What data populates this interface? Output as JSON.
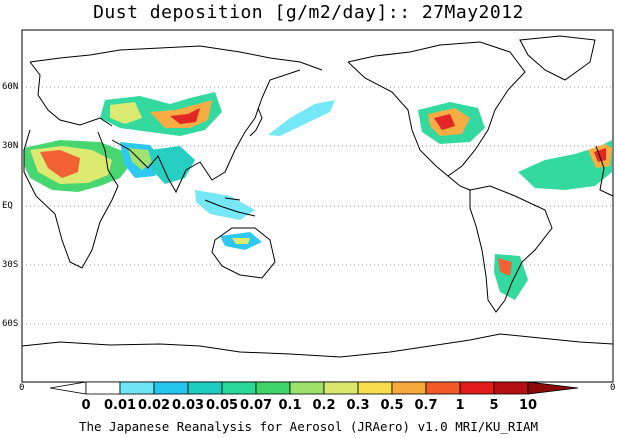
{
  "title": "Dust deposition [g/m2/day]:: 27May2012",
  "credit": "The Japanese Reanalysis for Aerosol (JRAero) v1.0 MRI/KU_RIAM",
  "lat_labels": [
    "60N",
    "30N",
    "EQ",
    "30S",
    "60S"
  ],
  "edge_zero_left": "0",
  "edge_zero_right": "0",
  "colorbar": {
    "tick_labels": [
      "0",
      "0.01",
      "0.02",
      "0.03",
      "0.05",
      "0.07",
      "0.1",
      "0.2",
      "0.3",
      "0.5",
      "0.7",
      "1",
      "5",
      "10"
    ],
    "colors": [
      "#ffffff",
      "#ffffff",
      "#6fe6f5",
      "#24c6f0",
      "#1ccdc0",
      "#2ad89a",
      "#3fd46a",
      "#9de26a",
      "#dbe96a",
      "#f5dd4d",
      "#f7a93a",
      "#f25a2a",
      "#e21b1b",
      "#b50f14",
      "#8b0a0a"
    ]
  },
  "legend": {
    "shows": "dust deposition levels"
  }
}
